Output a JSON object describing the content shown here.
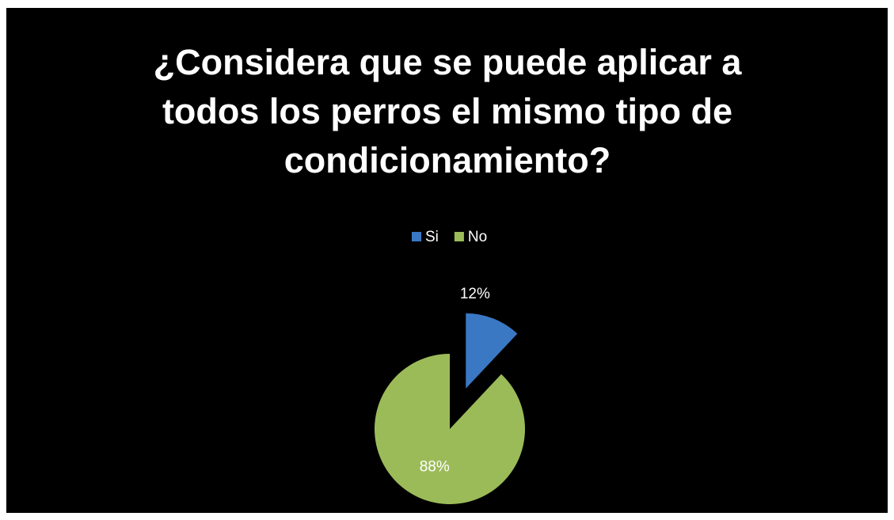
{
  "chart_data": {
    "type": "pie",
    "title": "¿Considera que se puede aplicar a todos los perros el mismo tipo de condicionamiento?",
    "categories": [
      "Si",
      "No"
    ],
    "values": [
      12,
      88
    ],
    "value_labels": [
      "12%",
      "88%"
    ],
    "colors": [
      "#3a78c4",
      "#9bbb59"
    ],
    "legend": "top",
    "exploded": [
      true,
      false
    ]
  }
}
